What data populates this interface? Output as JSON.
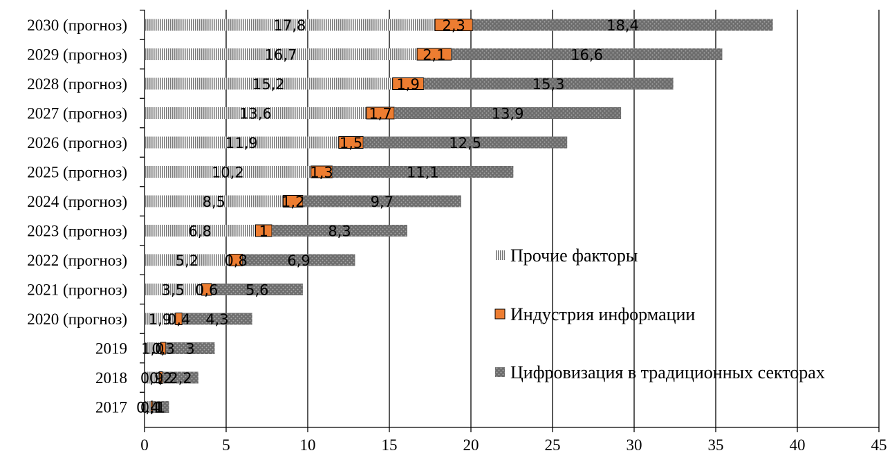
{
  "chart_data": {
    "type": "bar",
    "orientation": "horizontal",
    "stacked": true,
    "categories": [
      "2017",
      "2018",
      "2019",
      "2020 (прогноз)",
      "2021 (прогноз)",
      "2022 (прогноз)",
      "2023 (прогноз)",
      "2024 (прогноз)",
      "2025 (прогноз)",
      "2026 (прогноз)",
      "2027 (прогноз)",
      "2028 (прогноз)",
      "2029 (прогноз)",
      "2030 (прогноз)"
    ],
    "series": [
      {
        "name": "Прочие факторы",
        "pattern": "vertical-lines",
        "color": "#8c8c8c",
        "values": [
          0.4,
          0.9,
          1.0,
          1.9,
          3.5,
          5.2,
          6.8,
          8.5,
          10.2,
          11.9,
          13.6,
          15.2,
          16.7,
          17.8
        ],
        "labels": [
          "0,4",
          "0,9",
          "1,0",
          "1,9",
          "3,5",
          "5,2",
          "6,8",
          "8,5",
          "10,2",
          "11,9",
          "13,6",
          "15,2",
          "16,7",
          "17,8"
        ]
      },
      {
        "name": "Индустрия информации",
        "pattern": "solid",
        "color": "#ed7d31",
        "values": [
          0.1,
          0.2,
          0.3,
          0.4,
          0.6,
          0.8,
          1.0,
          1.2,
          1.3,
          1.5,
          1.7,
          1.9,
          2.1,
          2.3
        ],
        "labels": [
          "0,1",
          "0,2",
          "0,3",
          "0,4",
          "0,6",
          "0,8",
          "1",
          "1,2",
          "1,3",
          "1,5",
          "1,7",
          "1,9",
          "2,1",
          "2,3"
        ]
      },
      {
        "name": "Цифровизация в традиционных секторах",
        "pattern": "dots",
        "color": "#6d6d6d",
        "values": [
          1.0,
          2.2,
          3.0,
          4.3,
          5.6,
          6.9,
          8.3,
          9.7,
          11.1,
          12.5,
          13.9,
          15.3,
          16.6,
          18.4
        ],
        "labels": [
          "1",
          "2,2",
          "3",
          "4,3",
          "5,6",
          "6,9",
          "8,3",
          "9,7",
          "11,1",
          "12,5",
          "13,9",
          "15,3",
          "16,6",
          "18,4"
        ]
      }
    ],
    "xlim": [
      0,
      45
    ],
    "x_ticks": [
      "0",
      "5",
      "10",
      "15",
      "20",
      "25",
      "30",
      "35",
      "40",
      "45"
    ],
    "x_tick_values": [
      0,
      5,
      10,
      15,
      20,
      25,
      30,
      35,
      40,
      45
    ],
    "grid": "vertical",
    "legend_position": "right"
  }
}
